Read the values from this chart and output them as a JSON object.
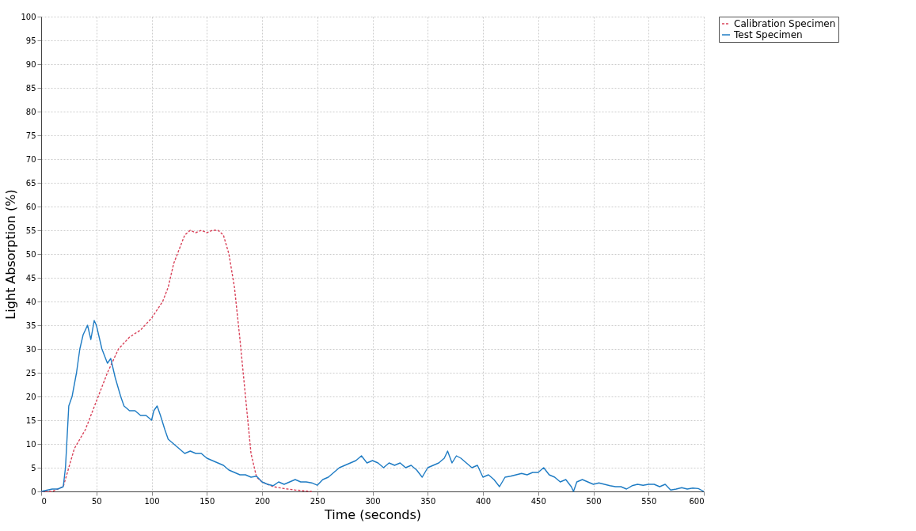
{
  "chart_data": {
    "type": "line",
    "xlabel": "Time (seconds)",
    "ylabel": "Light Absorption (%)",
    "xlim": [
      0,
      600
    ],
    "ylim": [
      0,
      100
    ],
    "xticks": [
      0,
      50,
      100,
      150,
      200,
      250,
      300,
      350,
      400,
      450,
      500,
      550,
      600
    ],
    "yticks": [
      0,
      5,
      10,
      15,
      20,
      25,
      30,
      35,
      40,
      45,
      50,
      55,
      60,
      65,
      70,
      75,
      80,
      85,
      90,
      95,
      100
    ],
    "grid": true,
    "legend": "top right",
    "marker": "none",
    "series": [
      {
        "name": "Calibration Specimen",
        "color": "#d9435a",
        "line_style": "dashed",
        "x": [
          0,
          10,
          20,
          25,
          30,
          40,
          50,
          60,
          70,
          80,
          90,
          100,
          110,
          115,
          120,
          125,
          130,
          135,
          140,
          145,
          150,
          155,
          160,
          165,
          170,
          175,
          180,
          185,
          190,
          195,
          200,
          210,
          220,
          230,
          245
        ],
        "values": [
          0,
          0,
          1,
          5,
          9,
          13,
          19,
          25,
          30,
          32.5,
          34,
          36.5,
          40,
          43,
          48,
          51,
          54,
          55,
          54.5,
          55,
          54.5,
          55,
          55,
          54,
          50,
          43,
          32,
          20,
          8,
          3,
          2,
          1,
          0.6,
          0.3,
          0
        ]
      },
      {
        "name": "Test Specimen",
        "color": "#1f7cc4",
        "line_style": "solid",
        "x": [
          0,
          10,
          15,
          20,
          22,
          25,
          28,
          32,
          35,
          38,
          42,
          45,
          48,
          50,
          55,
          60,
          63,
          67,
          72,
          75,
          80,
          85,
          90,
          95,
          100,
          102,
          105,
          108,
          112,
          115,
          120,
          125,
          130,
          135,
          140,
          145,
          150,
          155,
          160,
          165,
          170,
          175,
          180,
          185,
          190,
          195,
          200,
          205,
          210,
          215,
          220,
          225,
          230,
          235,
          240,
          245,
          250,
          255,
          260,
          265,
          270,
          275,
          280,
          285,
          290,
          295,
          300,
          305,
          310,
          315,
          320,
          325,
          330,
          335,
          340,
          345,
          350,
          355,
          360,
          365,
          368,
          372,
          376,
          380,
          385,
          390,
          395,
          400,
          405,
          410,
          415,
          420,
          425,
          430,
          435,
          440,
          445,
          450,
          455,
          460,
          465,
          470,
          475,
          480,
          482,
          485,
          490,
          495,
          500,
          505,
          510,
          515,
          520,
          525,
          530,
          535,
          540,
          545,
          550,
          555,
          560,
          565,
          570,
          575,
          580,
          585,
          590,
          595,
          600
        ],
        "values": [
          0,
          0.5,
          0.5,
          1,
          5,
          18,
          20,
          25,
          30,
          33,
          35,
          32,
          36,
          35,
          30,
          27,
          28,
          24,
          20,
          18,
          17,
          17,
          16,
          16,
          15,
          17,
          18,
          16,
          13,
          11,
          10,
          9,
          8,
          8.5,
          8,
          8,
          7,
          6.5,
          6,
          5.5,
          4.5,
          4,
          3.5,
          3.5,
          3,
          3.2,
          2,
          1.5,
          1.2,
          2,
          1.5,
          2,
          2.5,
          2,
          2,
          1.8,
          1.3,
          2.5,
          3,
          4,
          5,
          5.5,
          6,
          6.5,
          7.5,
          6,
          6.5,
          6,
          5,
          6,
          5.5,
          6,
          5,
          5.5,
          4.5,
          3,
          5,
          5.5,
          6,
          7,
          8.5,
          6,
          7.5,
          7,
          6,
          5,
          5.5,
          3,
          3.5,
          2.5,
          1,
          3,
          3.2,
          3.5,
          3.8,
          3.5,
          4,
          4,
          5,
          3.5,
          3,
          2,
          2.5,
          1,
          0,
          2,
          2.5,
          2,
          1.5,
          1.8,
          1.5,
          1.2,
          1,
          1,
          0.5,
          1.2,
          1.5,
          1.3,
          1.5,
          1.5,
          1,
          1.5,
          0.3,
          0.5,
          0.8,
          0.5,
          0.7,
          0.6,
          0
        ]
      }
    ]
  }
}
